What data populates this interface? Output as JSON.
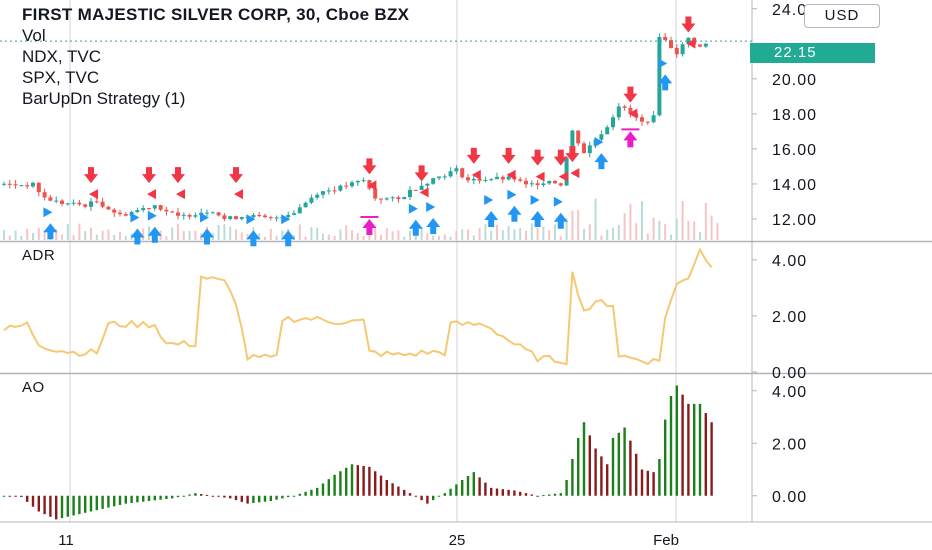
{
  "header": {
    "symbol_title": "FIRST MAJESTIC SILVER CORP, 30, Cboe BZX",
    "overlays": [
      "Vol",
      "NDX, TVC",
      "SPX, TVC",
      "BarUpDn Strategy (1)"
    ],
    "currency": "USD",
    "last_price": "22.15"
  },
  "colors": {
    "up": "#26a69a",
    "down": "#ef5350",
    "adr": "#f7c873",
    "ao_up": "#1b7f1b",
    "ao_down": "#8b1a1a",
    "buy_arrow": "#2196f3",
    "sell_arrow": "#f23645",
    "exit_arrow": "#e91ec8",
    "price_line": "#22ab94"
  },
  "chart_data": [
    {
      "type": "candlestick",
      "title": "FIRST MAJESTIC SILVER CORP, 30, Cboe BZX",
      "ylim": [
        10.8,
        24.5
      ],
      "y_ticks": [
        "24.00",
        "20.00",
        "18.00",
        "16.00",
        "14.00",
        "12.00"
      ],
      "x_ticks": [
        "11",
        "25",
        "Feb"
      ],
      "close_path": [
        [
          0,
          13.95
        ],
        [
          5,
          13.95
        ],
        [
          7,
          13.2
        ],
        [
          10,
          12.9
        ],
        [
          14,
          12.8
        ],
        [
          16,
          13.0
        ],
        [
          20,
          12.2
        ],
        [
          24,
          12.6
        ],
        [
          26,
          12.8
        ],
        [
          30,
          12.1
        ],
        [
          34,
          12.4
        ],
        [
          36,
          12.5
        ],
        [
          38,
          12.0
        ],
        [
          42,
          12.2
        ],
        [
          46,
          12.0
        ],
        [
          50,
          12.4
        ],
        [
          54,
          13.5
        ],
        [
          58,
          13.8
        ],
        [
          62,
          14.2
        ],
        [
          64,
          13.2
        ],
        [
          68,
          13.1
        ],
        [
          70,
          13.6
        ],
        [
          74,
          14.3
        ],
        [
          78,
          14.8
        ],
        [
          80,
          14.2
        ],
        [
          84,
          14.3
        ],
        [
          88,
          14.3
        ],
        [
          90,
          13.9
        ],
        [
          94,
          14.2
        ],
        [
          96,
          14.0
        ],
        [
          98,
          17.0
        ],
        [
          100,
          15.8
        ],
        [
          104,
          17.3
        ],
        [
          106,
          18.5
        ],
        [
          110,
          17.5
        ],
        [
          112,
          17.8
        ],
        [
          113,
          22.5
        ],
        [
          116,
          21.5
        ],
        [
          118,
          22.3
        ],
        [
          120,
          21.8
        ],
        [
          122,
          22.15
        ]
      ],
      "signals": {
        "buy": [
          [
            8,
            11.3
          ],
          [
            23,
            11.0
          ],
          [
            26,
            11.1
          ],
          [
            35,
            11.0
          ],
          [
            43,
            10.9
          ],
          [
            49,
            10.9
          ],
          [
            71,
            11.5
          ],
          [
            74,
            11.6
          ],
          [
            84,
            12.0
          ],
          [
            88,
            12.3
          ],
          [
            92,
            12.0
          ],
          [
            96,
            11.9
          ],
          [
            103,
            15.3
          ],
          [
            114,
            19.8
          ]
        ],
        "sell": [
          [
            15,
            14.5
          ],
          [
            25,
            14.5
          ],
          [
            30,
            14.5
          ],
          [
            40,
            14.5
          ],
          [
            63,
            15.0
          ],
          [
            72,
            14.6
          ],
          [
            81,
            15.6
          ],
          [
            87,
            15.6
          ],
          [
            92,
            15.5
          ],
          [
            96,
            15.5
          ],
          [
            98,
            15.7
          ],
          [
            108,
            19.1
          ],
          [
            118,
            23.1
          ]
        ],
        "exit": [
          [
            63,
            12.0
          ],
          [
            108,
            17.0
          ]
        ]
      }
    },
    {
      "type": "line",
      "title": "ADR",
      "ylim": [
        0,
        4.6
      ],
      "y_ticks": [
        "4.00",
        "2.00",
        "0.00"
      ],
      "points": [
        [
          0,
          1.5
        ],
        [
          4,
          1.7
        ],
        [
          6,
          1.0
        ],
        [
          9,
          0.8
        ],
        [
          12,
          0.7
        ],
        [
          16,
          0.7
        ],
        [
          18,
          1.7
        ],
        [
          22,
          1.7
        ],
        [
          26,
          1.7
        ],
        [
          28,
          1.0
        ],
        [
          33,
          1.0
        ],
        [
          34,
          3.4
        ],
        [
          38,
          3.2
        ],
        [
          40,
          2.5
        ],
        [
          42,
          0.5
        ],
        [
          45,
          0.5
        ],
        [
          47,
          0.5
        ],
        [
          48,
          1.9
        ],
        [
          53,
          1.9
        ],
        [
          57,
          1.8
        ],
        [
          62,
          1.8
        ],
        [
          63,
          0.7
        ],
        [
          68,
          0.6
        ],
        [
          73,
          0.7
        ],
        [
          76,
          0.7
        ],
        [
          77,
          1.7
        ],
        [
          83,
          1.7
        ],
        [
          88,
          1.0
        ],
        [
          92,
          0.5
        ],
        [
          97,
          0.4
        ],
        [
          98,
          3.5
        ],
        [
          100,
          2.2
        ],
        [
          103,
          2.5
        ],
        [
          105,
          2.4
        ],
        [
          106,
          0.6
        ],
        [
          108,
          0.5
        ],
        [
          111,
          0.4
        ],
        [
          113,
          0.4
        ],
        [
          114,
          2.0
        ],
        [
          116,
          3.1
        ],
        [
          118,
          3.4
        ],
        [
          120,
          4.4
        ],
        [
          122,
          3.7
        ]
      ]
    },
    {
      "type": "bar",
      "title": "AO",
      "ylim": [
        -1.0,
        4.6
      ],
      "y_ticks": [
        "4.00",
        "2.00",
        "0.00"
      ],
      "points": [
        [
          0,
          0.0
        ],
        [
          3,
          -0.05
        ],
        [
          6,
          -0.6
        ],
        [
          9,
          -0.9
        ],
        [
          13,
          -0.7
        ],
        [
          17,
          -0.5
        ],
        [
          21,
          -0.3
        ],
        [
          25,
          -0.2
        ],
        [
          29,
          -0.1
        ],
        [
          33,
          0.1
        ],
        [
          36,
          0.0
        ],
        [
          39,
          -0.1
        ],
        [
          42,
          -0.3
        ],
        [
          46,
          -0.2
        ],
        [
          50,
          0.0
        ],
        [
          54,
          0.3
        ],
        [
          57,
          0.8
        ],
        [
          60,
          1.2
        ],
        [
          63,
          1.1
        ],
        [
          66,
          0.6
        ],
        [
          70,
          0.1
        ],
        [
          73,
          -0.3
        ],
        [
          76,
          0.1
        ],
        [
          79,
          0.6
        ],
        [
          81,
          0.9
        ],
        [
          84,
          0.3
        ],
        [
          88,
          0.2
        ],
        [
          92,
          0.0
        ],
        [
          96,
          0.1
        ],
        [
          97,
          0.6
        ],
        [
          99,
          2.2
        ],
        [
          100,
          2.8
        ],
        [
          102,
          1.8
        ],
        [
          104,
          1.2
        ],
        [
          105,
          2.2
        ],
        [
          107,
          2.6
        ],
        [
          109,
          1.6
        ],
        [
          110,
          1.0
        ],
        [
          112,
          0.9
        ],
        [
          113,
          1.4
        ],
        [
          114,
          2.9
        ],
        [
          115,
          3.8
        ],
        [
          116,
          4.2
        ],
        [
          118,
          3.5
        ],
        [
          120,
          3.5
        ],
        [
          122,
          2.8
        ]
      ]
    }
  ]
}
